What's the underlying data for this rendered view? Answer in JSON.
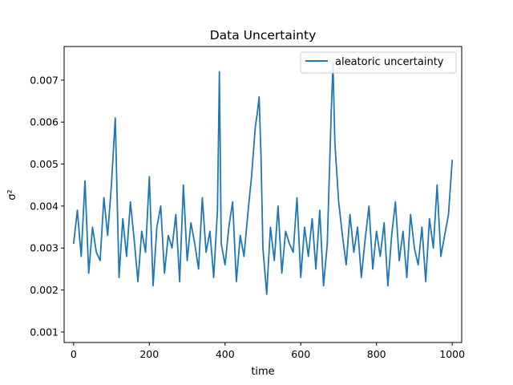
{
  "chart_data": {
    "type": "line",
    "title": "Data Uncertainty",
    "xlabel": "time",
    "ylabel": "σ²",
    "xlim": [
      -25,
      1025
    ],
    "ylim": [
      0.00075,
      0.0078
    ],
    "x_ticks": [
      0,
      200,
      400,
      600,
      800,
      1000
    ],
    "y_ticks": [
      0.001,
      0.002,
      0.003,
      0.004,
      0.005,
      0.006,
      0.007
    ],
    "x_tick_labels": [
      "0",
      "200",
      "400",
      "600",
      "800",
      "1000"
    ],
    "y_tick_labels": [
      "0.001",
      "0.002",
      "0.003",
      "0.004",
      "0.005",
      "0.006",
      "0.007"
    ],
    "grid": false,
    "legend_position": "top-right",
    "series": [
      {
        "name": "aleatoric uncertainty",
        "color": "#1f77b4",
        "x": [
          0,
          10,
          20,
          30,
          40,
          50,
          60,
          70,
          80,
          90,
          100,
          110,
          120,
          130,
          140,
          150,
          160,
          170,
          180,
          190,
          200,
          210,
          220,
          230,
          240,
          250,
          260,
          270,
          280,
          290,
          300,
          310,
          320,
          330,
          340,
          350,
          360,
          370,
          380,
          385,
          390,
          400,
          410,
          420,
          430,
          440,
          450,
          460,
          470,
          480,
          485,
          490,
          495,
          500,
          510,
          520,
          530,
          540,
          550,
          560,
          570,
          580,
          590,
          600,
          610,
          620,
          630,
          640,
          650,
          660,
          670,
          680,
          685,
          690,
          700,
          710,
          720,
          730,
          740,
          750,
          760,
          770,
          780,
          790,
          800,
          810,
          820,
          830,
          840,
          850,
          860,
          870,
          880,
          890,
          900,
          910,
          920,
          930,
          940,
          950,
          960,
          970,
          980,
          990,
          1000
        ],
        "y": [
          0.0031,
          0.0039,
          0.0028,
          0.0046,
          0.0024,
          0.0035,
          0.0029,
          0.0027,
          0.0042,
          0.0033,
          0.0045,
          0.0061,
          0.0023,
          0.0037,
          0.0028,
          0.0041,
          0.0032,
          0.0022,
          0.0034,
          0.0029,
          0.0047,
          0.0021,
          0.0035,
          0.004,
          0.0024,
          0.0033,
          0.003,
          0.0038,
          0.0022,
          0.0045,
          0.0027,
          0.0036,
          0.0031,
          0.0025,
          0.0042,
          0.0029,
          0.0034,
          0.0023,
          0.0039,
          0.0072,
          0.0031,
          0.0026,
          0.0035,
          0.0041,
          0.0022,
          0.0033,
          0.0028,
          0.0038,
          0.0047,
          0.0059,
          0.0062,
          0.0066,
          0.0052,
          0.003,
          0.0019,
          0.0035,
          0.0027,
          0.004,
          0.0024,
          0.0034,
          0.0031,
          0.0029,
          0.0042,
          0.0023,
          0.0035,
          0.0028,
          0.0037,
          0.0025,
          0.0039,
          0.0021,
          0.0031,
          0.0061,
          0.0074,
          0.0055,
          0.0041,
          0.0033,
          0.0026,
          0.0038,
          0.0029,
          0.0035,
          0.0023,
          0.0032,
          0.004,
          0.0025,
          0.0034,
          0.0028,
          0.0036,
          0.0021,
          0.0033,
          0.0041,
          0.0027,
          0.0034,
          0.0023,
          0.0038,
          0.003,
          0.0026,
          0.0035,
          0.0022,
          0.0037,
          0.003,
          0.0045,
          0.0028,
          0.0033,
          0.0038,
          0.0051
        ]
      }
    ]
  }
}
